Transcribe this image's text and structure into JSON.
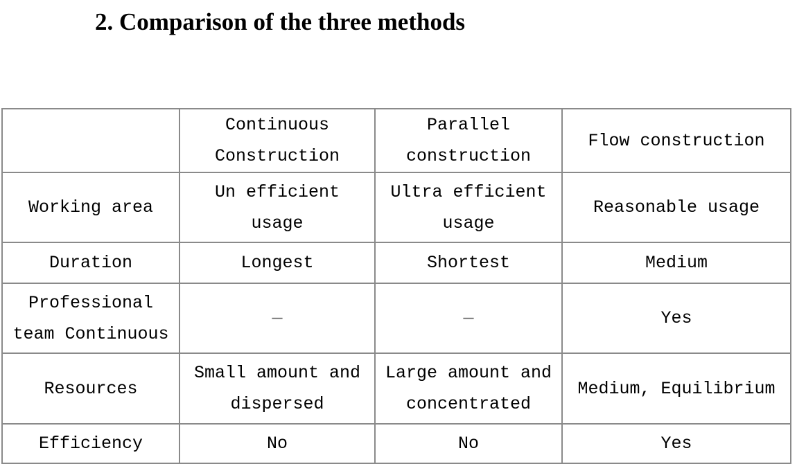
{
  "title": "2.  Comparison of the three methods",
  "table": {
    "headers": [
      "",
      "Continuous Construction",
      "Parallel construction",
      "Flow construction"
    ],
    "rows": [
      [
        "Working area",
        "Un efficient usage",
        "Ultra efficient usage",
        "Reasonable usage"
      ],
      [
        "Duration",
        "Longest",
        "Shortest",
        "Medium"
      ],
      [
        "Professional team Continuous",
        "—",
        "—",
        "Yes"
      ],
      [
        "Resources",
        "Small amount and dispersed",
        "Large amount and concentrated",
        "Medium, Equilibrium"
      ],
      [
        "Efficiency",
        "No",
        "No",
        "Yes"
      ]
    ]
  },
  "border_color": "#8a8a8a"
}
